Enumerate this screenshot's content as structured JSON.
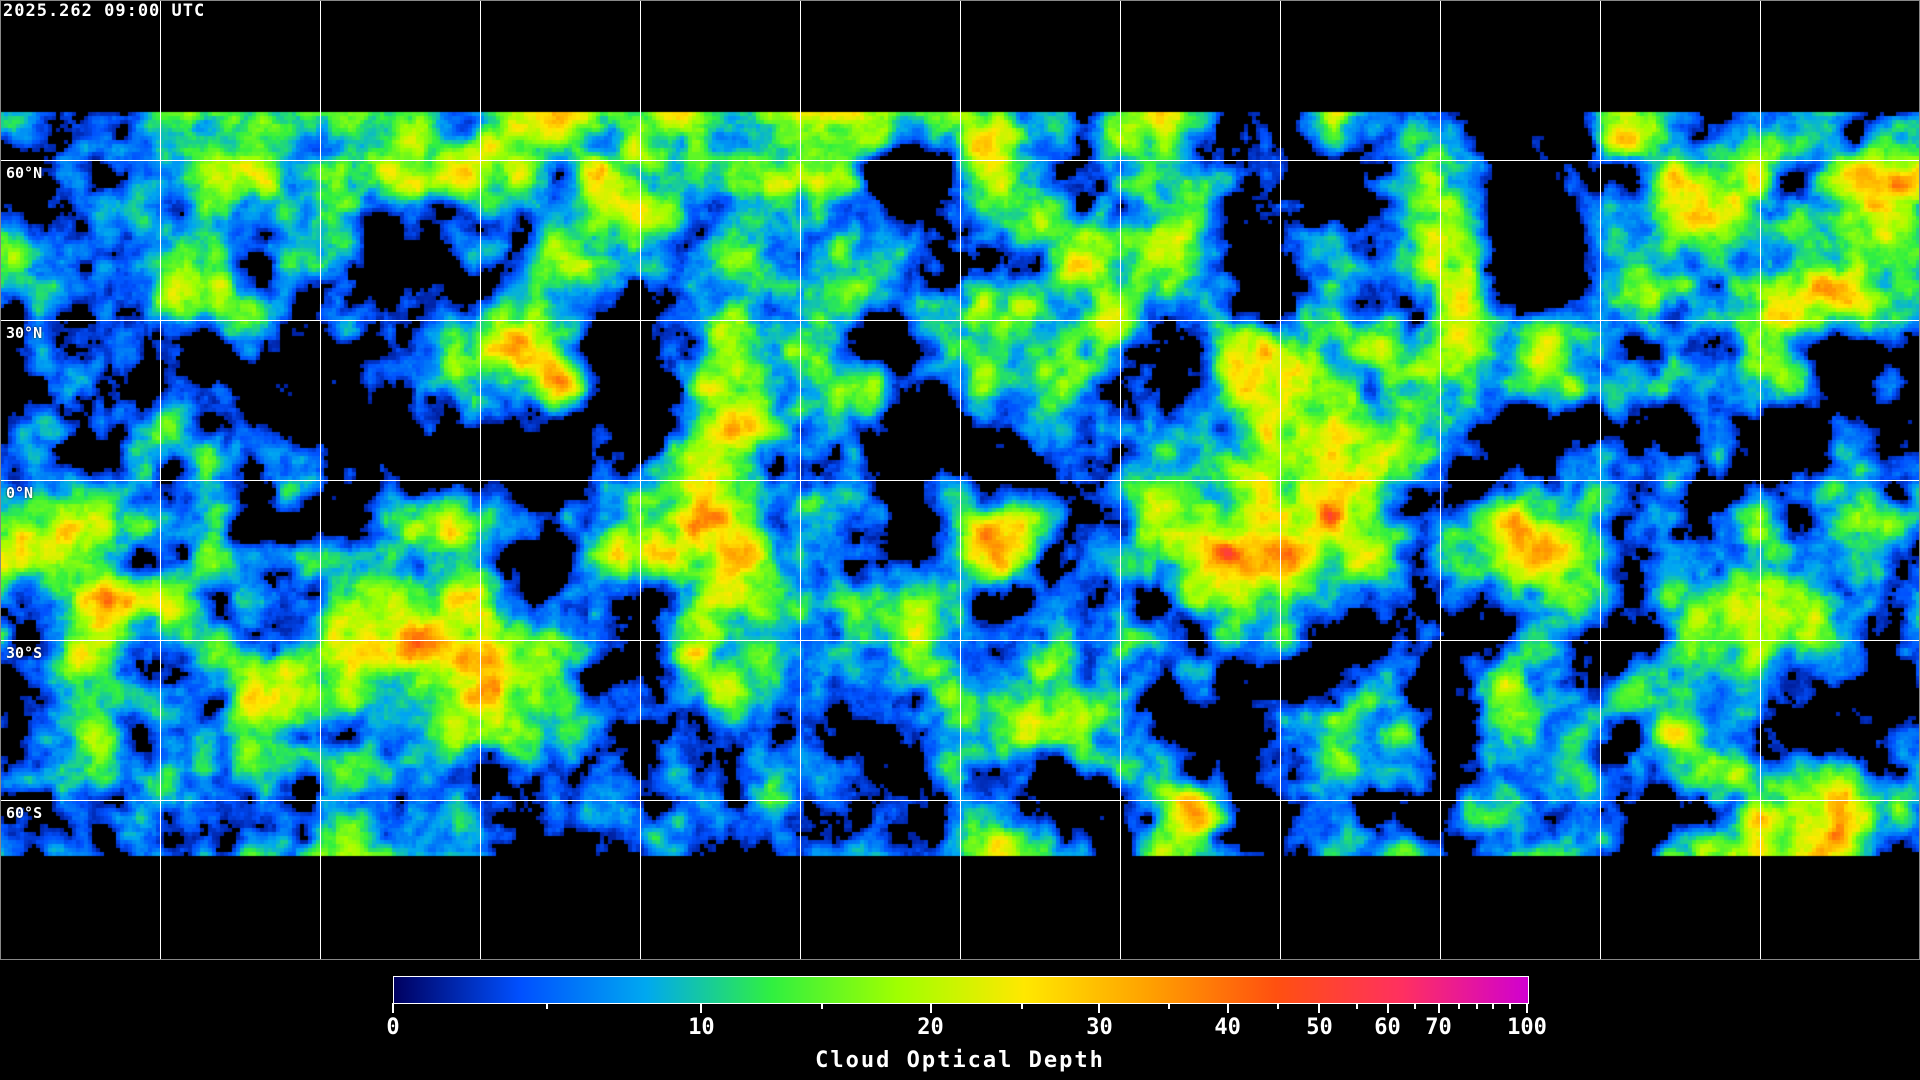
{
  "header": {
    "timestamp": "2025.262 09:00 UTC"
  },
  "map": {
    "projection": "equirectangular",
    "gridlines": true,
    "latitude_labels": [
      "60°N",
      "30°N",
      "0°N",
      "30°S",
      "60°S"
    ],
    "background_color": "#000000",
    "coastline_color": "#ffffff"
  },
  "colorbar": {
    "title": "Cloud Optical Depth",
    "range": [
      0,
      100
    ],
    "tick_labels": [
      "0",
      "10",
      "20",
      "30",
      "40",
      "50",
      "60",
      "70",
      "100"
    ],
    "colors": [
      "#000060",
      "#0050ff",
      "#00a8f0",
      "#30f040",
      "#a0ff00",
      "#ffe800",
      "#ffa000",
      "#ff5010",
      "#ff3060",
      "#d000d0"
    ]
  }
}
